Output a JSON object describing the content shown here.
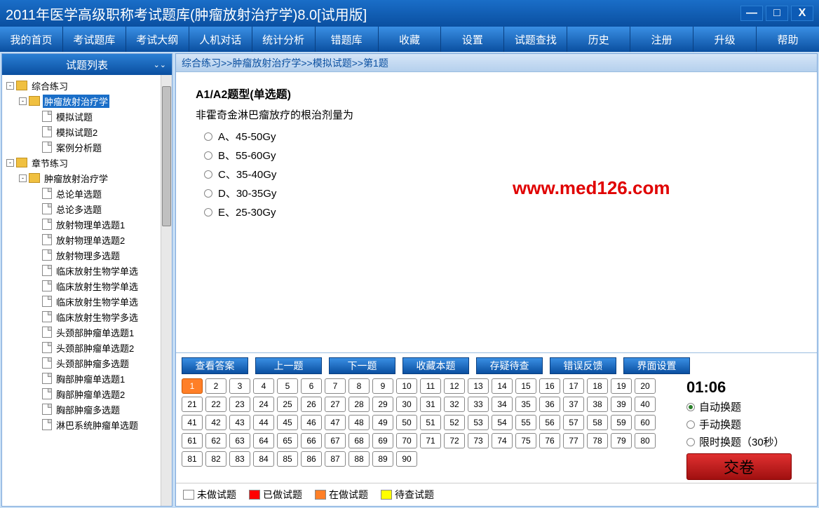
{
  "window": {
    "title": "2011年医学高级职称考试题库(肿瘤放射治疗学)8.0[试用版]"
  },
  "menu": [
    "我的首页",
    "考试题库",
    "考试大纲",
    "人机对话",
    "统计分析",
    "错题库",
    "收藏",
    "设置",
    "试题查找",
    "历史",
    "注册",
    "升级",
    "帮助"
  ],
  "sidebar": {
    "header": "试题列表",
    "tree": [
      {
        "level": 1,
        "exp": "-",
        "ico": "book",
        "label": "综合练习"
      },
      {
        "level": 2,
        "exp": "-",
        "ico": "book",
        "label": "肿瘤放射治疗学",
        "selected": true
      },
      {
        "level": 3,
        "exp": null,
        "ico": "page",
        "label": "模拟试题"
      },
      {
        "level": 3,
        "exp": null,
        "ico": "page",
        "label": "模拟试题2"
      },
      {
        "level": 3,
        "exp": null,
        "ico": "page",
        "label": "案例分析题"
      },
      {
        "level": 1,
        "exp": "-",
        "ico": "book",
        "label": "章节练习"
      },
      {
        "level": 2,
        "exp": "-",
        "ico": "book",
        "label": "肿瘤放射治疗学"
      },
      {
        "level": 4,
        "exp": null,
        "ico": "page",
        "label": "总论单选题"
      },
      {
        "level": 4,
        "exp": null,
        "ico": "page",
        "label": "总论多选题"
      },
      {
        "level": 4,
        "exp": null,
        "ico": "page",
        "label": "放射物理单选题1"
      },
      {
        "level": 4,
        "exp": null,
        "ico": "page",
        "label": "放射物理单选题2"
      },
      {
        "level": 4,
        "exp": null,
        "ico": "page",
        "label": "放射物理多选题"
      },
      {
        "level": 4,
        "exp": null,
        "ico": "page",
        "label": "临床放射生物学单选"
      },
      {
        "level": 4,
        "exp": null,
        "ico": "page",
        "label": "临床放射生物学单选"
      },
      {
        "level": 4,
        "exp": null,
        "ico": "page",
        "label": "临床放射生物学单选"
      },
      {
        "level": 4,
        "exp": null,
        "ico": "page",
        "label": "临床放射生物学多选"
      },
      {
        "level": 4,
        "exp": null,
        "ico": "page",
        "label": "头颈部肿瘤单选题1"
      },
      {
        "level": 4,
        "exp": null,
        "ico": "page",
        "label": "头颈部肿瘤单选题2"
      },
      {
        "level": 4,
        "exp": null,
        "ico": "page",
        "label": "头颈部肿瘤多选题"
      },
      {
        "level": 4,
        "exp": null,
        "ico": "page",
        "label": "胸部肿瘤单选题1"
      },
      {
        "level": 4,
        "exp": null,
        "ico": "page",
        "label": "胸部肿瘤单选题2"
      },
      {
        "level": 4,
        "exp": null,
        "ico": "page",
        "label": "胸部肿瘤多选题"
      },
      {
        "level": 4,
        "exp": null,
        "ico": "page",
        "label": "淋巴系统肿瘤单选题"
      }
    ]
  },
  "breadcrumb": "综合练习>>肿瘤放射治疗学>>模拟试题>>第1题",
  "question": {
    "type": "A1/A2题型(单选题)",
    "text": "非霍奇金淋巴瘤放疗的根治剂量为",
    "options": [
      "A、45-50Gy",
      "B、55-60Gy",
      "C、35-40Gy",
      "D、30-35Gy",
      "E、25-30Gy"
    ]
  },
  "watermark": "www.med126.com",
  "actions": [
    "查看答案",
    "上一题",
    "下一题",
    "收藏本题",
    "存疑待查",
    "错误反馈",
    "界面设置"
  ],
  "nums": {
    "total": 90,
    "current": 1
  },
  "timer": "01:06",
  "modes": [
    {
      "label": "自动换题",
      "selected": true
    },
    {
      "label": "手动换题",
      "selected": false
    },
    {
      "label": "限时换题（30秒）",
      "selected": false
    }
  ],
  "submit": "交卷",
  "legend": [
    {
      "color": "#ffffff",
      "label": "未做试题"
    },
    {
      "color": "#ff0000",
      "label": "已做试题"
    },
    {
      "color": "#ff7f27",
      "label": "在做试题"
    },
    {
      "color": "#ffff00",
      "label": "待查试题"
    }
  ]
}
